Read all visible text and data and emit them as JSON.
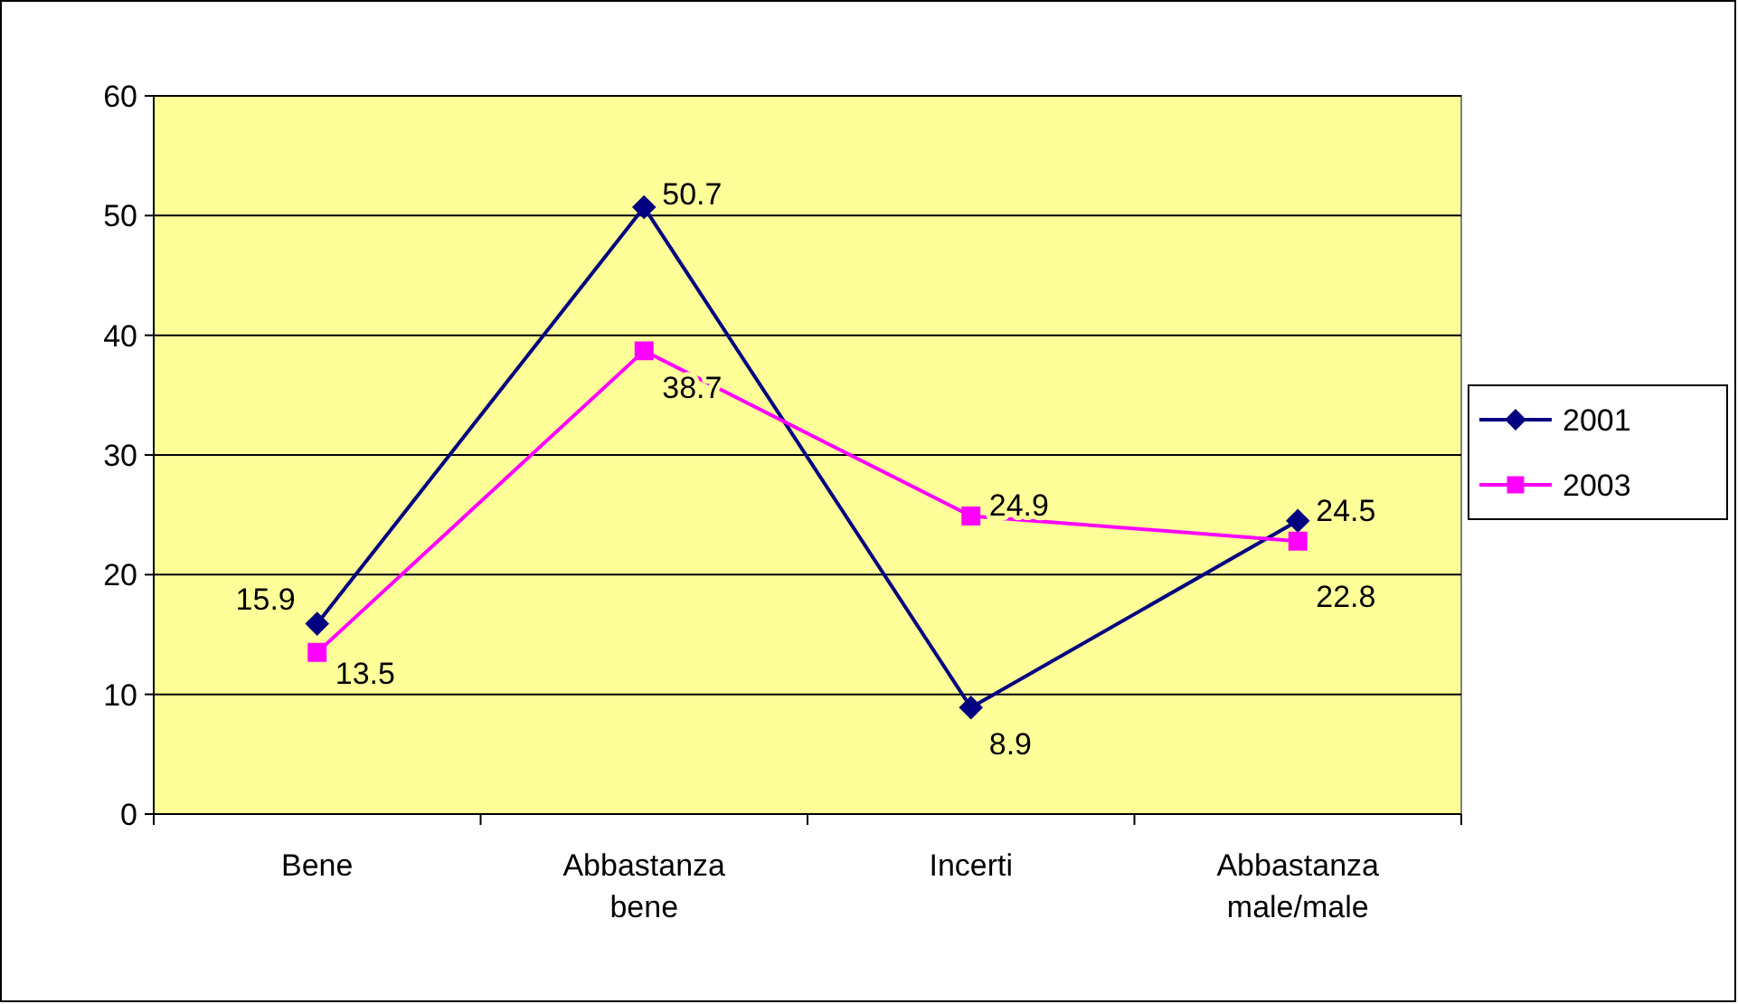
{
  "chart_data": {
    "type": "line",
    "categories": [
      "Bene",
      "Abbastanza bene",
      "Incerti",
      "Abbastanza male/male"
    ],
    "series": [
      {
        "name": "2001",
        "color": "#000080",
        "marker": "diamond",
        "values": [
          15.9,
          50.7,
          8.9,
          24.5
        ]
      },
      {
        "name": "2003",
        "color": "#ff00ff",
        "marker": "square",
        "values": [
          13.5,
          38.7,
          24.9,
          22.8
        ]
      }
    ],
    "ylim": [
      0,
      60
    ],
    "yticks": [
      0,
      10,
      20,
      30,
      40,
      50,
      60
    ],
    "grid": "y",
    "legend": "right",
    "data_labels": true
  }
}
